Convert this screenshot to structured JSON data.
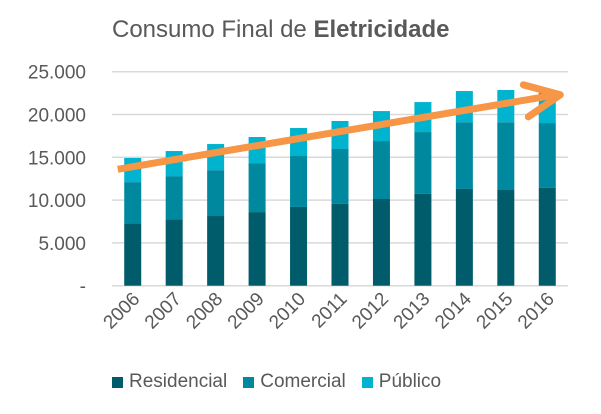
{
  "chart_data": {
    "type": "bar",
    "stacked": true,
    "title": "Consumo Final de",
    "title_bold": "Eletricidade",
    "categories": [
      "2006",
      "2007",
      "2008",
      "2009",
      "2010",
      "2011",
      "2012",
      "2013",
      "2014",
      "2015",
      "2016"
    ],
    "series": [
      {
        "name": "Residencial",
        "color": "#005B6A",
        "values": [
          7300,
          7770,
          8140,
          8600,
          9200,
          9550,
          10130,
          10720,
          11300,
          11180,
          11420
        ]
      },
      {
        "name": "Comercial",
        "color": "#00889E",
        "values": [
          4800,
          5030,
          5360,
          5720,
          5950,
          6420,
          6770,
          7230,
          7800,
          7920,
          7580
        ]
      },
      {
        "name": "Público",
        "color": "#00B3CF",
        "values": [
          2820,
          2930,
          3050,
          3050,
          3270,
          3270,
          3500,
          3500,
          3640,
          3760,
          3740
        ]
      }
    ],
    "ylim": [
      0,
      25000
    ],
    "yticks": [
      0,
      5000,
      10000,
      15000,
      20000,
      25000
    ],
    "ytick_labels": [
      "-",
      "5.000",
      "10.000",
      "15.000",
      "20.000",
      "25.000"
    ],
    "grid": true,
    "legend": "bottom",
    "trend_arrow": {
      "color": "#F79646",
      "from": [
        "2006",
        13600
      ],
      "to": [
        "2016",
        22300
      ]
    }
  }
}
